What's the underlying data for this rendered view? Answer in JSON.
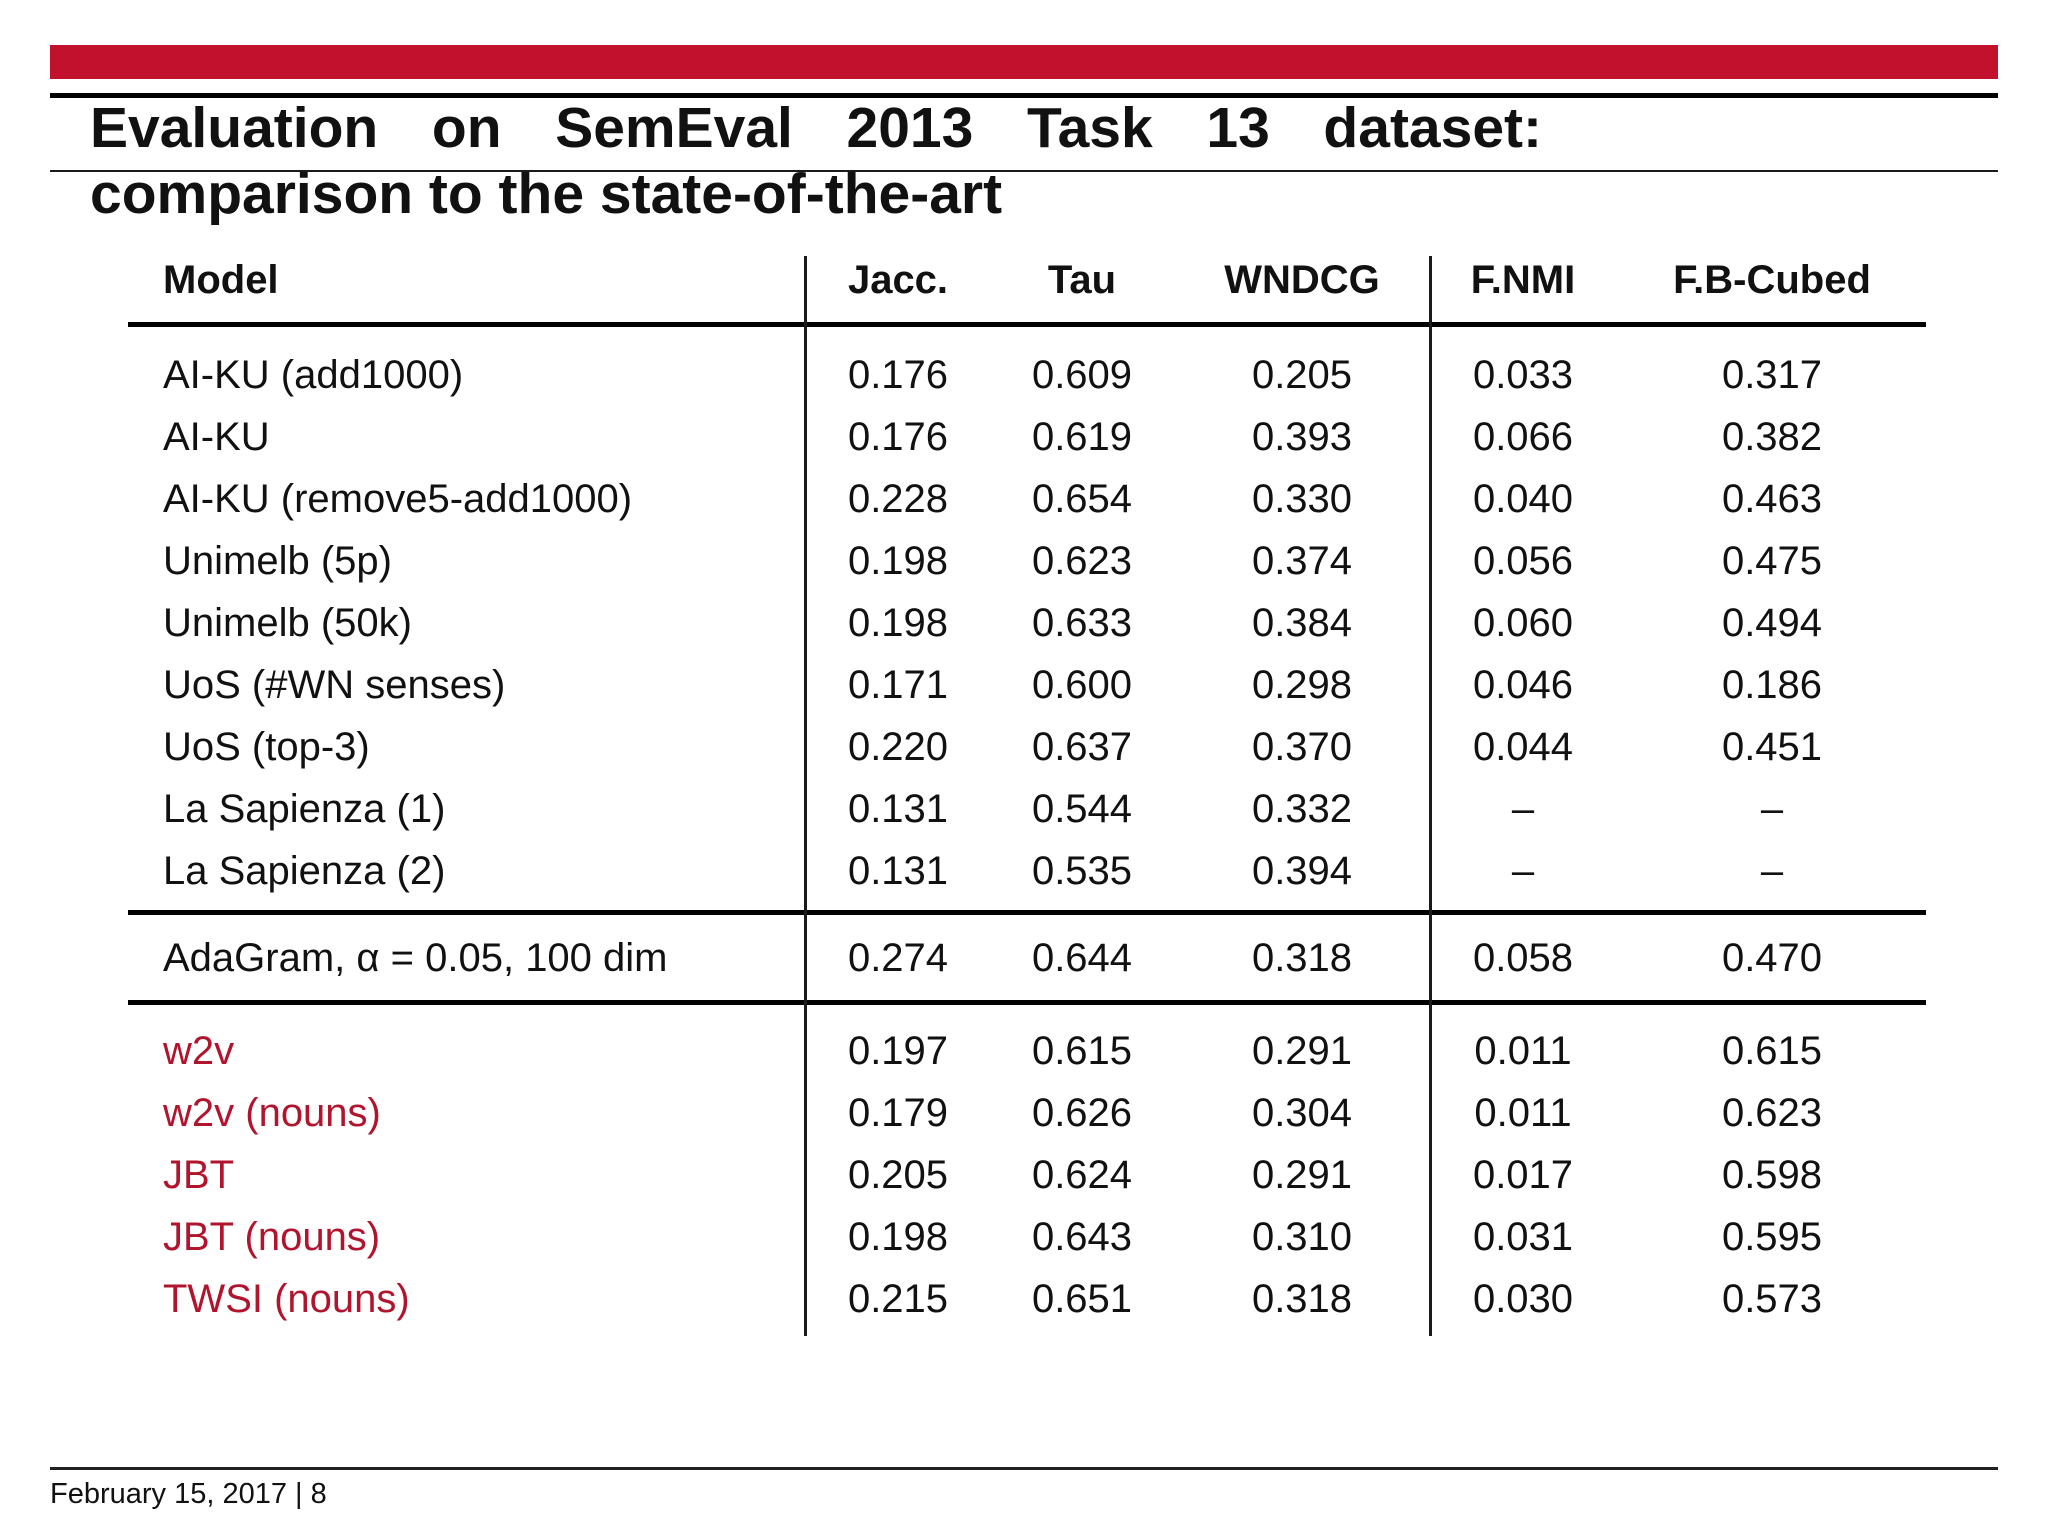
{
  "slide": {
    "title_line1": "Evaluation on SemEval 2013 Task 13 dataset:",
    "title_line2": "comparison to the state-of-the-art",
    "footer": "February 15, 2017 | 8",
    "accent_color": "#C1112C",
    "highlight_text_color": "#B1142D"
  },
  "table": {
    "headers": [
      "Model",
      "Jacc.",
      "Tau",
      "WNDCG",
      "F.NMI",
      "F.B-Cubed"
    ],
    "groups": [
      {
        "name": "state-of-the-art-systems",
        "style": "standard",
        "rows": [
          {
            "model": "AI-KU (add1000)",
            "values": [
              "0.176",
              "0.609",
              "0.205",
              "0.033",
              "0.317"
            ]
          },
          {
            "model": "AI-KU",
            "values": [
              "0.176",
              "0.619",
              "0.393",
              "0.066",
              "0.382"
            ]
          },
          {
            "model": "AI-KU (remove5-add1000)",
            "values": [
              "0.228",
              "0.654",
              "0.330",
              "0.040",
              "0.463"
            ]
          },
          {
            "model": "Unimelb (5p)",
            "values": [
              "0.198",
              "0.623",
              "0.374",
              "0.056",
              "0.475"
            ]
          },
          {
            "model": "Unimelb (50k)",
            "values": [
              "0.198",
              "0.633",
              "0.384",
              "0.060",
              "0.494"
            ]
          },
          {
            "model": "UoS (#WN senses)",
            "values": [
              "0.171",
              "0.600",
              "0.298",
              "0.046",
              "0.186"
            ]
          },
          {
            "model": "UoS (top-3)",
            "values": [
              "0.220",
              "0.637",
              "0.370",
              "0.044",
              "0.451"
            ]
          },
          {
            "model": "La Sapienza (1)",
            "values": [
              "0.131",
              "0.544",
              "0.332",
              "–",
              "–"
            ]
          },
          {
            "model": "La Sapienza (2)",
            "values": [
              "0.131",
              "0.535",
              "0.394",
              "–",
              "–"
            ]
          }
        ]
      },
      {
        "name": "adagram",
        "style": "standard",
        "rows": [
          {
            "model": "AdaGram, α = 0.05, 100 dim",
            "values": [
              "0.274",
              "0.644",
              "0.318",
              "0.058",
              "0.470"
            ]
          }
        ]
      },
      {
        "name": "highlighted-baselines",
        "style": "red",
        "rows": [
          {
            "model": "w2v",
            "values": [
              "0.197",
              "0.615",
              "0.291",
              "0.011",
              "0.615"
            ]
          },
          {
            "model": "w2v (nouns)",
            "values": [
              "0.179",
              "0.626",
              "0.304",
              "0.011",
              "0.623"
            ]
          },
          {
            "model": "JBT",
            "values": [
              "0.205",
              "0.624",
              "0.291",
              "0.017",
              "0.598"
            ]
          },
          {
            "model": "JBT (nouns)",
            "values": [
              "0.198",
              "0.643",
              "0.310",
              "0.031",
              "0.595"
            ]
          },
          {
            "model": "TWSI (nouns)",
            "values": [
              "0.215",
              "0.651",
              "0.318",
              "0.030",
              "0.573"
            ]
          }
        ]
      }
    ]
  }
}
